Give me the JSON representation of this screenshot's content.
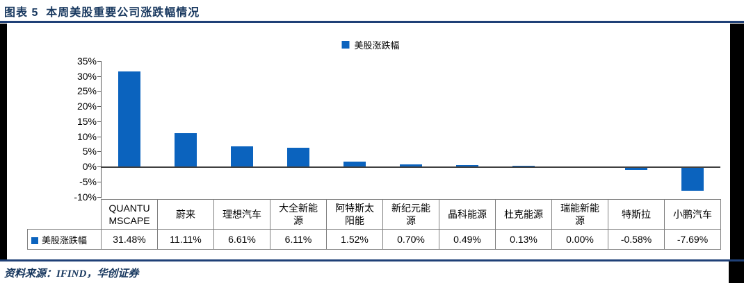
{
  "page": {
    "source": "资料来源：IFIND，华创证券"
  },
  "colors": {
    "navy_text": "#17375E",
    "rule_blue": "#1F4077",
    "bar_blue": "#0B63BE",
    "table_border": "#7F7F7F",
    "axis_gray": "#595959",
    "zero_line": "#404040",
    "frame_black": "#000000"
  },
  "chart_data": {
    "type": "bar",
    "title": "图表 5  本周美股重要公司涨跌幅情况",
    "legend": [
      "美股涨跌幅"
    ],
    "legend_position": "top-center",
    "categories": [
      "QUANTUMSCAPE",
      "蔚来",
      "理想汽车",
      "大全新能源",
      "阿特斯太阳能",
      "新纪元能源",
      "晶科能源",
      "杜克能源",
      "瑞能新能源",
      "特斯拉",
      "小鹏汽车"
    ],
    "series": [
      {
        "name": "美股涨跌幅",
        "values": [
          31.48,
          11.11,
          6.61,
          6.11,
          1.52,
          0.7,
          0.49,
          0.13,
          0.0,
          -0.58,
          -7.69
        ]
      }
    ],
    "value_labels": [
      "31.48%",
      "11.11%",
      "6.61%",
      "6.11%",
      "1.52%",
      "0.70%",
      "0.49%",
      "0.13%",
      "0.00%",
      "-0.58%",
      "-7.69%"
    ],
    "xlabel": "",
    "ylabel": "",
    "ylim": [
      -10,
      35
    ],
    "ytick_step": 5,
    "ytick_labels": [
      "35%",
      "30%",
      "25%",
      "20%",
      "15%",
      "10%",
      "5%",
      "0%",
      "-5%",
      "-10%"
    ],
    "grid": false,
    "data_table": true
  }
}
